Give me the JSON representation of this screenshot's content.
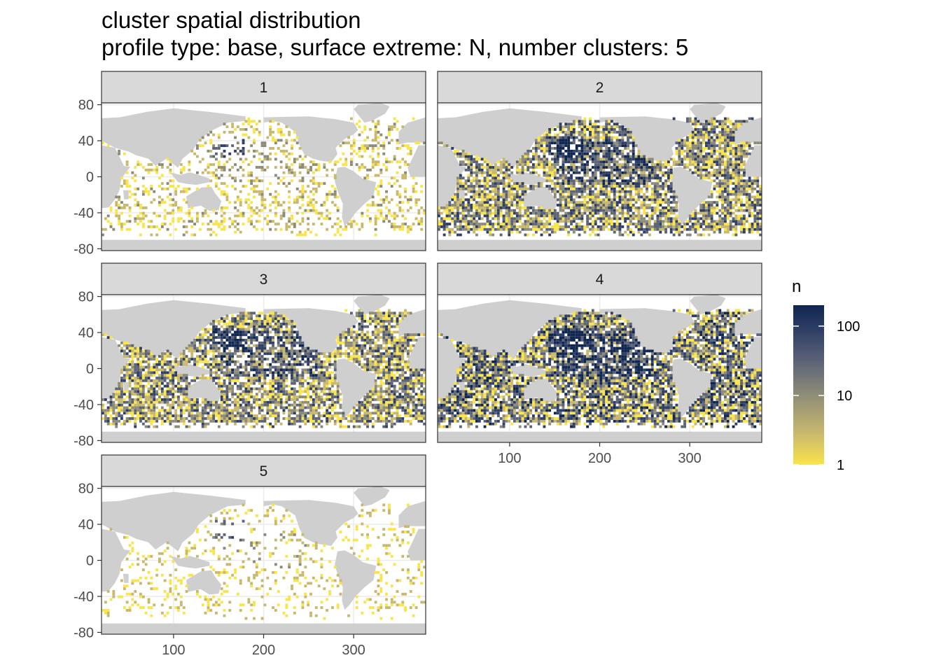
{
  "chart_data": {
    "type": "heatmap",
    "title": "cluster spatial distribution",
    "subtitle": "profile type: base, surface extreme: N, number clusters: 5",
    "xlabel": "",
    "ylabel": "",
    "xlim": [
      20,
      380
    ],
    "ylim": [
      -82,
      82
    ],
    "x_ticks": [
      100,
      200,
      300
    ],
    "y_ticks": [
      -80,
      -40,
      0,
      40,
      80
    ],
    "grid": true,
    "facets": [
      {
        "label": "1",
        "density": 0.3,
        "intensity": 0.3
      },
      {
        "label": "2",
        "density": 0.82,
        "intensity": 0.62
      },
      {
        "label": "3",
        "density": 0.8,
        "intensity": 0.58
      },
      {
        "label": "4",
        "density": 0.86,
        "intensity": 0.72
      },
      {
        "label": "5",
        "density": 0.16,
        "intensity": 0.25
      }
    ],
    "legend": {
      "title": "n",
      "scale": "log10",
      "range": [
        1,
        200
      ],
      "breaks": [
        {
          "value": 1,
          "label": "1"
        },
        {
          "value": 10,
          "label": "10"
        },
        {
          "value": 100,
          "label": "100"
        }
      ],
      "colors": [
        "#f9e449",
        "#c8b86e",
        "#8c8a78",
        "#5b6377",
        "#2e3e64",
        "#0f2650"
      ],
      "position": "right"
    },
    "land_color": "#cfcfcf",
    "strip_fill": "#d9d9d9"
  }
}
